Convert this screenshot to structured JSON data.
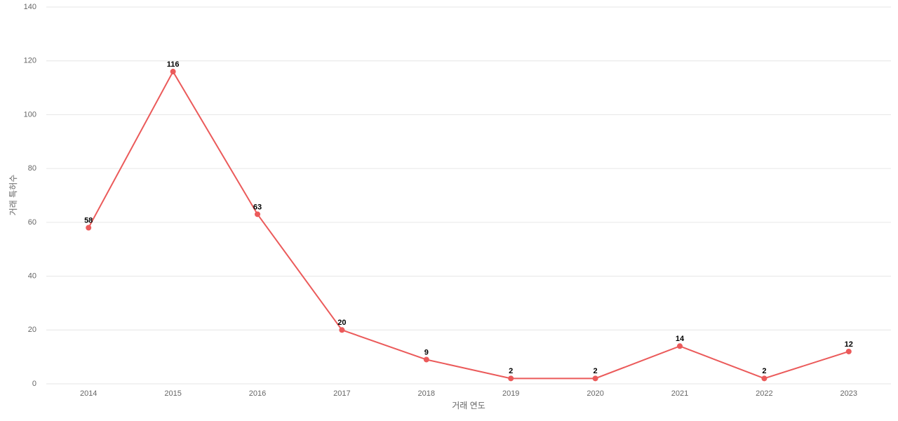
{
  "chart_data": {
    "type": "line",
    "x_label": "거래 연도",
    "y_label": "거래 특허수",
    "categories": [
      "2014",
      "2015",
      "2016",
      "2017",
      "2018",
      "2019",
      "2020",
      "2021",
      "2022",
      "2023"
    ],
    "series": [
      {
        "name": "거래 특허수",
        "color": "#eb5a5a",
        "values": [
          58,
          116,
          63,
          20,
          9,
          2,
          2,
          14,
          2,
          12
        ]
      }
    ],
    "ylim": [
      0,
      140
    ],
    "yticks": [
      0,
      20,
      40,
      60,
      80,
      100,
      120,
      140
    ],
    "grid": true
  }
}
